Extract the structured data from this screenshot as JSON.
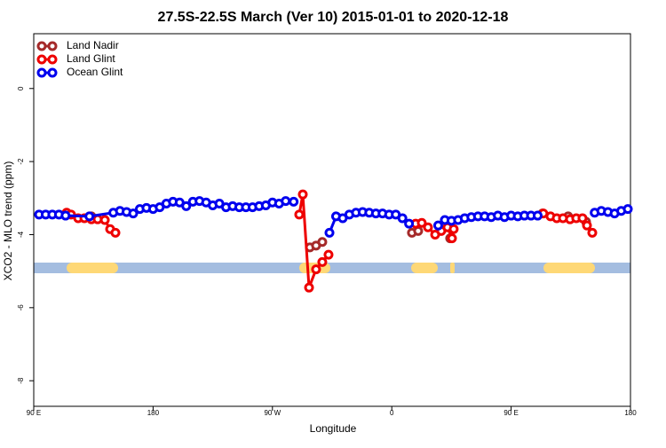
{
  "chart_data": {
    "type": "line",
    "title": "27.5S-22.5S March (Ver 10)   2015-01-01 to 2020-12-18",
    "x_label": "Longitude",
    "y_label": "XCO2 - MLO trend (ppm)",
    "xlim": [
      90,
      540
    ],
    "xticks": [
      {
        "value": 90,
        "label": "90 E"
      },
      180,
      {
        "value": 270,
        "label": "90 W"
      },
      {
        "value": 360,
        "label": "0"
      },
      {
        "value": 450,
        "label": "90 E"
      },
      {
        "value": 540,
        "label": "180"
      }
    ],
    "ylim": [
      -8.7,
      1.5
    ],
    "yticks": [
      0,
      -2,
      -4,
      -6,
      -8
    ],
    "legend": "top-left",
    "series": [
      {
        "name": "Land Nadir",
        "color": "#a52a2a",
        "x": [
          133.5,
          null,
          298.2,
          302.9,
          307.6,
          null,
          375.2,
          379.9,
          null,
          404,
          null,
          473.7,
          null,
          493,
          null,
          506.5
        ],
        "values": [
          -3.5,
          null,
          -4.35,
          -4.3,
          -4.2,
          null,
          -3.95,
          -3.9,
          null,
          -4.1,
          null,
          -3.42,
          null,
          -3.5,
          null,
          -3.65
        ]
      },
      {
        "name": "Land Glint",
        "color": "#ee0000",
        "x": [
          114.8,
          118.1,
          123.5,
          128.2,
          133.5,
          138.2,
          143.6,
          147.6,
          151.6,
          null,
          290.2,
          292.9,
          297.6,
          302.9,
          307.6,
          312.3,
          null,
          378,
          382.6,
          387.3,
          392.7,
          397.3,
          402,
          405.4,
          406.7,
          null,
          474.3,
          479.7,
          484.4,
          489.1,
          494.4,
          499.1,
          503.8,
          507.2,
          511.2
        ],
        "values": [
          -3.4,
          -3.45,
          -3.55,
          -3.55,
          -3.58,
          -3.58,
          -3.6,
          -3.85,
          -3.95,
          null,
          -3.45,
          -2.9,
          -5.45,
          -4.95,
          -4.75,
          -4.55,
          null,
          -3.7,
          -3.68,
          -3.8,
          -4.0,
          -3.9,
          -3.8,
          -4.1,
          -3.85,
          null,
          -3.42,
          -3.5,
          -3.55,
          -3.55,
          -3.58,
          -3.55,
          -3.55,
          -3.75,
          -3.95
        ]
      },
      {
        "name": "Ocean Glint",
        "color": "#0000ee",
        "x": [
          94,
          99,
          104,
          109,
          114,
          132,
          150,
          155,
          160,
          165,
          170,
          175,
          180,
          185,
          190,
          195,
          200,
          205,
          210,
          215,
          220,
          225,
          230,
          235,
          240,
          245,
          250,
          255,
          260,
          265,
          270,
          275,
          280,
          286,
          null,
          313,
          318,
          323,
          328,
          333,
          338,
          343,
          348,
          353,
          358,
          363,
          368,
          373,
          null,
          395,
          400,
          405,
          410,
          415,
          420,
          425,
          430,
          435,
          440,
          445,
          450,
          455,
          460,
          465,
          470,
          null,
          513,
          518,
          523,
          528,
          533,
          538
        ],
        "values": [
          -3.45,
          -3.45,
          -3.45,
          -3.45,
          -3.48,
          -3.5,
          -3.4,
          -3.35,
          -3.38,
          -3.42,
          -3.3,
          -3.27,
          -3.3,
          -3.25,
          -3.15,
          -3.1,
          -3.12,
          -3.22,
          -3.1,
          -3.08,
          -3.12,
          -3.2,
          -3.15,
          -3.25,
          -3.22,
          -3.25,
          -3.25,
          -3.25,
          -3.22,
          -3.2,
          -3.12,
          -3.15,
          -3.08,
          -3.1,
          null,
          -3.95,
          -3.5,
          -3.55,
          -3.45,
          -3.4,
          -3.38,
          -3.4,
          -3.42,
          -3.42,
          -3.45,
          -3.45,
          -3.55,
          -3.7,
          null,
          -3.75,
          -3.6,
          -3.62,
          -3.6,
          -3.55,
          -3.52,
          -3.5,
          -3.5,
          -3.52,
          -3.48,
          -3.52,
          -3.48,
          -3.5,
          -3.48,
          -3.48,
          -3.48,
          null,
          -3.4,
          -3.35,
          -3.38,
          -3.42,
          -3.35,
          -3.3
        ]
      }
    ]
  }
}
